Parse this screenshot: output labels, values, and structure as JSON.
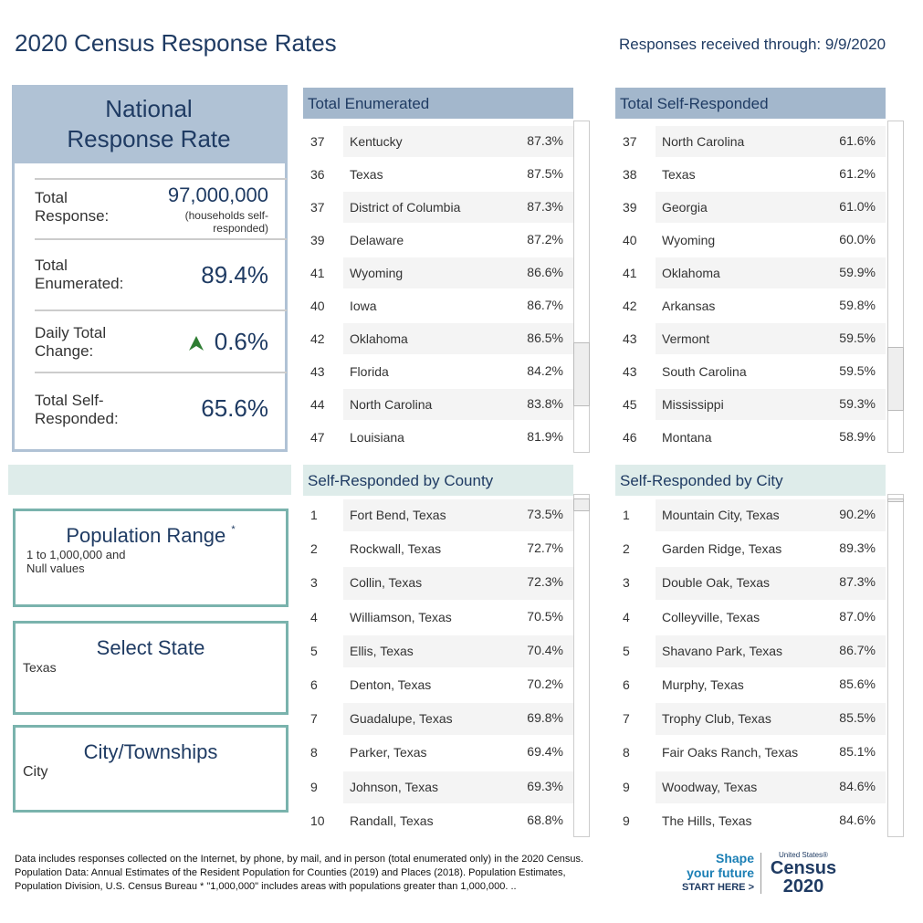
{
  "header": {
    "title": "2020 Census Response Rates",
    "date_note": "Responses received through: 9/9/2020"
  },
  "national": {
    "title": "National Response Rate",
    "rows": [
      {
        "label": "Total Response:",
        "value": "97,000,000",
        "note": "(households self-responded)"
      },
      {
        "label": "Total Enumerated:",
        "value": "89.4%"
      },
      {
        "label": "Daily Total Change:",
        "value": "0.6%"
      },
      {
        "label": "Total Self-Responded:",
        "value": "65.6%"
      }
    ]
  },
  "filters": [
    {
      "title": "Population Range",
      "mark": "*",
      "value": "1 to 1,000,000 and Null values"
    },
    {
      "title": "Select State",
      "value": "Texas"
    },
    {
      "title": "City/Townships",
      "value": "City"
    }
  ],
  "tables": [
    {
      "title": "Total Enumerated",
      "rows": [
        [
          "37",
          "Kentucky",
          "87.3%"
        ],
        [
          "36",
          "Texas",
          "87.5%"
        ],
        [
          "37",
          "District of Columbia",
          "87.3%"
        ],
        [
          "39",
          "Delaware",
          "87.2%"
        ],
        [
          "41",
          "Wyoming",
          "86.6%"
        ],
        [
          "40",
          "Iowa",
          "86.7%"
        ],
        [
          "42",
          "Oklahoma",
          "86.5%"
        ],
        [
          "43",
          "Florida",
          "84.2%"
        ],
        [
          "44",
          "North Carolina",
          "83.8%"
        ],
        [
          "47",
          "Louisiana",
          "81.9%"
        ]
      ]
    },
    {
      "title": "Total Self-Responded",
      "rows": [
        [
          "37",
          "North Carolina",
          "61.6%"
        ],
        [
          "38",
          "Texas",
          "61.2%"
        ],
        [
          "39",
          "Georgia",
          "61.0%"
        ],
        [
          "40",
          "Wyoming",
          "60.0%"
        ],
        [
          "41",
          "Oklahoma",
          "59.9%"
        ],
        [
          "42",
          "Arkansas",
          "59.8%"
        ],
        [
          "43",
          "Vermont",
          "59.5%"
        ],
        [
          "43",
          "South Carolina",
          "59.5%"
        ],
        [
          "45",
          "Mississippi",
          "59.3%"
        ],
        [
          "46",
          "Montana",
          "58.9%"
        ]
      ]
    },
    {
      "title": "Self-Responded by County",
      "rows": [
        [
          "1",
          "Fort Bend, Texas",
          "73.5%"
        ],
        [
          "2",
          "Rockwall, Texas",
          "72.7%"
        ],
        [
          "3",
          "Collin, Texas",
          "72.3%"
        ],
        [
          "4",
          "Williamson, Texas",
          "70.5%"
        ],
        [
          "5",
          "Ellis, Texas",
          "70.4%"
        ],
        [
          "6",
          "Denton, Texas",
          "70.2%"
        ],
        [
          "7",
          "Guadalupe, Texas",
          "69.8%"
        ],
        [
          "8",
          "Parker, Texas",
          "69.4%"
        ],
        [
          "9",
          "Johnson, Texas",
          "69.3%"
        ],
        [
          "10",
          "Randall, Texas",
          "68.8%"
        ]
      ]
    },
    {
      "title": "Self-Responded by City",
      "rows": [
        [
          "1",
          "Mountain City, Texas",
          "90.2%"
        ],
        [
          "2",
          "Garden Ridge, Texas",
          "89.3%"
        ],
        [
          "3",
          "Double Oak, Texas",
          "87.3%"
        ],
        [
          "4",
          "Colleyville, Texas",
          "87.0%"
        ],
        [
          "5",
          "Shavano Park, Texas",
          "86.7%"
        ],
        [
          "6",
          "Murphy, Texas",
          "85.6%"
        ],
        [
          "7",
          "Trophy Club, Texas",
          "85.5%"
        ],
        [
          "8",
          "Fair Oaks Ranch, Texas",
          "85.1%"
        ],
        [
          "9",
          "Woodway, Texas",
          "84.6%"
        ],
        [
          "9",
          "The Hills, Texas",
          "84.6%"
        ]
      ]
    }
  ],
  "footer": {
    "text": "Data includes responses collected on the Internet, by phone, by mail, and in person (total enumerated only) in the 2020 Census. Population Data: Annual Estimates of the Resident Population for Counties (2019) and Places (2018). Population Estimates, Population Division, U.S. Census Bureau * \"1,000,000\" includes areas with populations greater than 1,000,000.  ..",
    "logo": {
      "line1": "Shape",
      "line2": "your future",
      "line3": "START HERE >",
      "brand_small": "United States®",
      "brand1": "Census",
      "brand2": "2020"
    }
  }
}
